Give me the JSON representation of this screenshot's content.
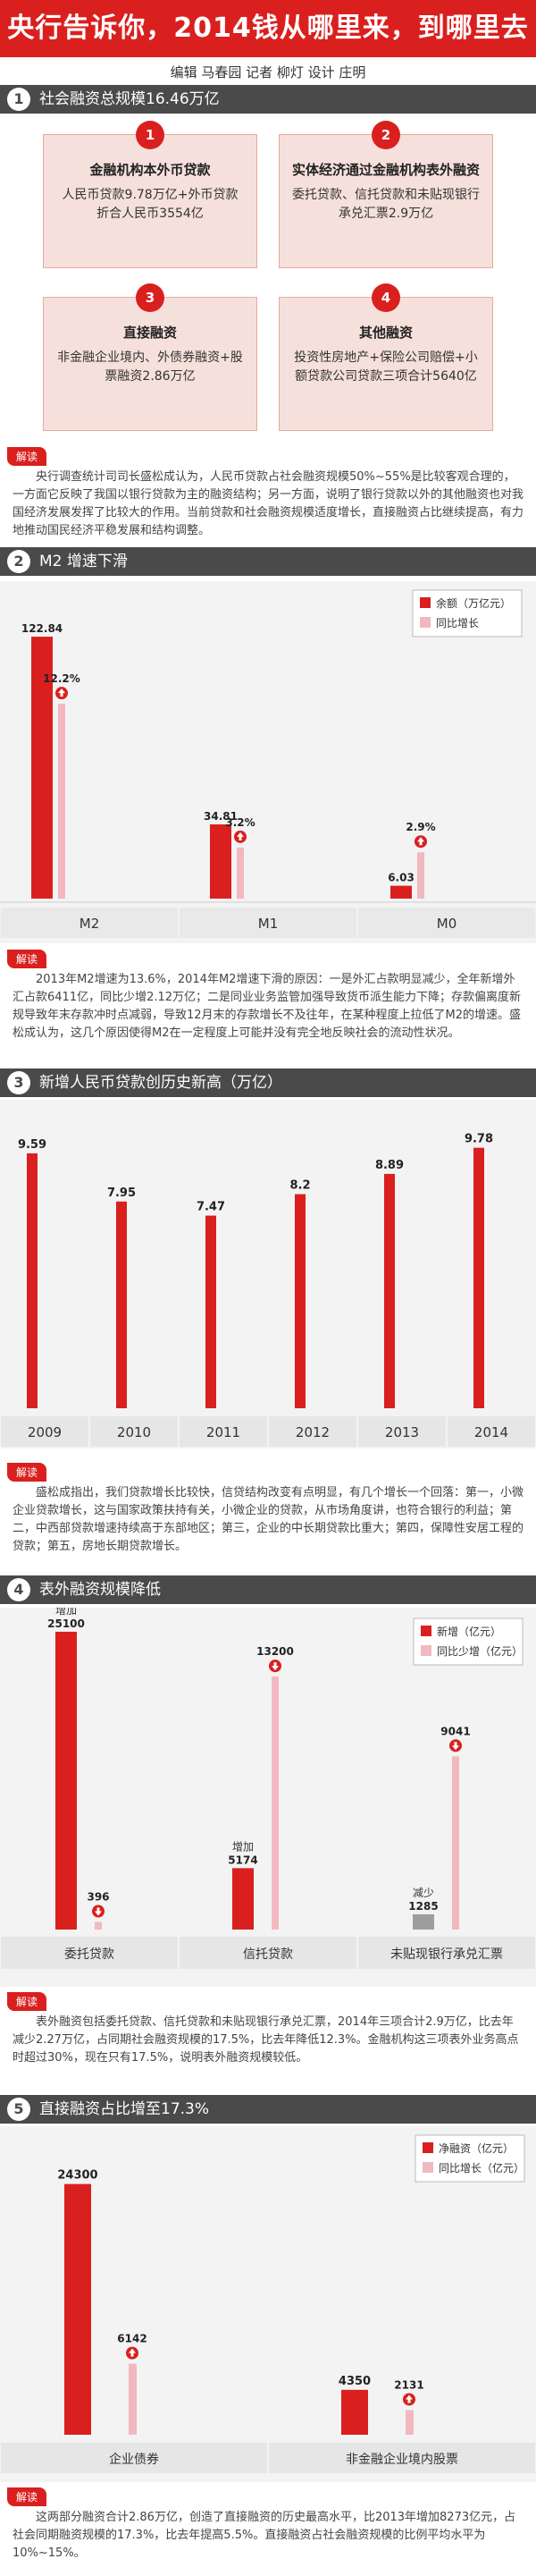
{
  "header": {
    "title": "央行告诉你，2014钱从哪里来，到哪里去",
    "credits": "编辑 马春园  记者 柳灯  设计 庄明"
  },
  "sections": [
    {
      "num": "1",
      "title": "社会融资总规模16.46万亿"
    },
    {
      "num": "2",
      "title": "M2 增速下滑"
    },
    {
      "num": "3",
      "title": "新增人民币贷款创历史新高（万亿）"
    },
    {
      "num": "4",
      "title": "表外融资规模降低"
    },
    {
      "num": "5",
      "title": "直接融资占比增至17.3%"
    }
  ],
  "cards": [
    {
      "num": "1",
      "title": "金融机构本外币贷款",
      "body": "人民币贷款9.78万亿+外币贷款折合人民币3554亿"
    },
    {
      "num": "2",
      "title": "实体经济通过金融机构表外融资",
      "body": "委托贷款、信托贷款和未贴现银行承兑汇票2.9万亿"
    },
    {
      "num": "3",
      "title": "直接融资",
      "body": "非金融企业境内、外债券融资+股票融资2.86万亿"
    },
    {
      "num": "4",
      "title": "其他融资",
      "body": "投资性房地产+保险公司赔偿+小额贷款公司贷款三项合计5640亿"
    }
  ],
  "jiedu_label": "解读",
  "jiedu": [
    "央行调查统计司司长盛松成认为，人民币贷款占社会融资规模50%~55%是比较客观合理的，一方面它反映了我国以银行贷款为主的融资结构；另一方面，说明了银行贷款以外的其他融资也对我国经济发展发挥了比较大的作用。当前贷款和社会融资规模适度增长，直接融资占比继续提高，有力地推动国民经济平稳发展和结构调整。",
    "2013年M2增速为13.6%，2014年M2增速下滑的原因：一是外汇占款明显减少，全年新增外汇占款6411亿，同比少增2.12万亿；二是同业业务监管加强导致货币派生能力下降；存款偏离度新规导致年末存款冲时点减弱，导致12月末的存款增长不及往年，在某种程度上拉低了M2的增速。盛松成认为，这几个原因使得M2在一定程度上可能并没有完全地反映社会的流动性状况。",
    "盛松成指出，我们贷款增长比较快，信贷结构改变有点明显，有几个增长一个回落：第一，小微企业贷款增长，这与国家政策扶持有关，小微企业的贷款，从市场角度讲，也符合银行的利益；第二，中西部贷款增速持续高于东部地区；第三，企业的中长期贷款比重大；第四，保障性安居工程的贷款；第五，房地长期贷款增长。",
    "表外融资包括委托贷款、信托贷款和未贴现银行承兑汇票，2014年三项合计2.9万亿，比去年减少2.27万亿，占同期社会融资规模的17.5%，比去年降低12.3%。金融机构这三项表外业务高点时超过30%，现在只有17.5%，说明表外融资规模较低。",
    "这两部分融资合计2.86万亿，创造了直接融资的历史最高水平，比2013年增加8273亿元，占社会同期融资规模的17.3%，比去年提高5.5%。直接融资占社会融资规模的比例平均水平为10%~15%。"
  ],
  "chart_data": [
    {
      "type": "bar",
      "title": "M2 增速下滑",
      "categories": [
        "M2",
        "M1",
        "M0"
      ],
      "series": [
        {
          "name": "余额（万亿元）",
          "values": [
            122.84,
            34.81,
            6.03
          ],
          "labels": [
            "122.84",
            "34.81",
            "6.03"
          ]
        },
        {
          "name": "同比增长",
          "values": [
            12.2,
            3.2,
            2.9
          ],
          "labels": [
            "12.2%",
            "3.2%",
            "2.9%"
          ]
        }
      ],
      "legend_position": "top-right",
      "colors": {
        "primary": "#d9201f",
        "secondary": "#f2b8c0"
      }
    },
    {
      "type": "bar",
      "title": "新增人民币贷款创历史新高（万亿）",
      "categories": [
        "2009",
        "2010",
        "2011",
        "2012",
        "2013",
        "2014"
      ],
      "values": [
        9.59,
        7.95,
        7.47,
        8.2,
        8.89,
        9.78
      ],
      "labels": [
        "9.59",
        "7.95",
        "7.47",
        "8.2",
        "8.89",
        "9.78"
      ],
      "colors": {
        "primary": "#d9201f"
      }
    },
    {
      "type": "bar",
      "title": "表外融资规模降低",
      "categories": [
        "委托贷款",
        "信托贷款",
        "未贴现银行承兑汇票"
      ],
      "series": [
        {
          "name": "新增（亿元）",
          "values": [
            25100,
            5174,
            -1285
          ],
          "labels": [
            "25100",
            "5174",
            "1285"
          ],
          "notes": [
            "增加",
            "增加",
            "减少"
          ]
        },
        {
          "name": "同比少增（亿元）",
          "values": [
            396,
            13200,
            9041
          ],
          "labels": [
            "396",
            "13200",
            "9041"
          ]
        }
      ],
      "legend_position": "top-right",
      "colors": {
        "primary": "#d9201f",
        "secondary": "#f2b8c0",
        "negative": "#9e9e9e"
      }
    },
    {
      "type": "bar",
      "title": "直接融资占比增至17.3%",
      "categories": [
        "企业债券",
        "非金融企业境内股票"
      ],
      "series": [
        {
          "name": "净融资（亿元）",
          "values": [
            24300,
            4350
          ],
          "labels": [
            "24300",
            "4350"
          ]
        },
        {
          "name": "同比增长（亿元）",
          "values": [
            6142,
            2131
          ],
          "labels": [
            "6142",
            "2131"
          ]
        }
      ],
      "legend_position": "top-right",
      "colors": {
        "primary": "#d9201f",
        "secondary": "#f2b8c0"
      }
    }
  ]
}
